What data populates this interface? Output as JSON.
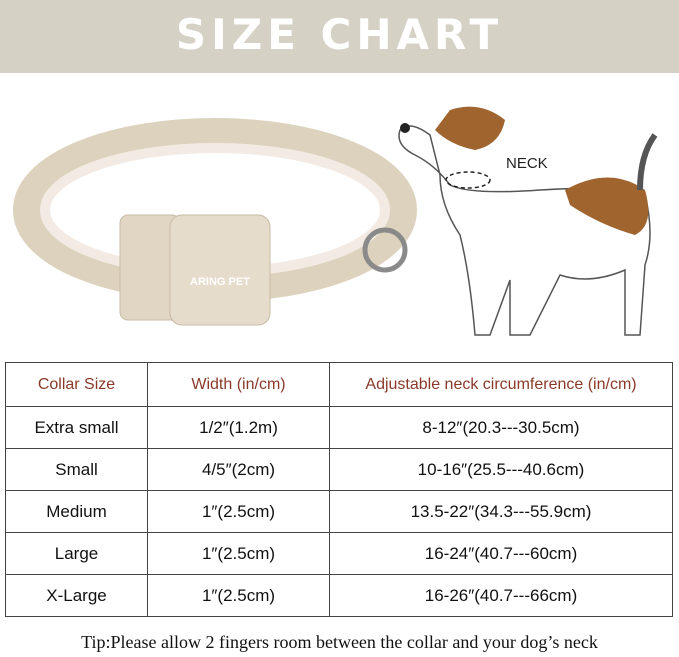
{
  "title": "SIZE CHART",
  "brand_logo": "ARING PET",
  "neck_label": "NECK",
  "colors": {
    "banner": "#d5d1c5",
    "header_text": "#8a3a28",
    "collar": "#e3d8c4",
    "dog_patch": "#a0642e"
  },
  "table": {
    "headers": [
      "Collar Size",
      "Width (in/cm)",
      "Adjustable neck circumference (in/cm)"
    ],
    "rows": [
      [
        "Extra small",
        "1/2″(1.2m)",
        "8-12″(20.3---30.5cm)"
      ],
      [
        "Small",
        "4/5″(2cm)",
        "10-16″(25.5---40.6cm)"
      ],
      [
        "Medium",
        "1″(2.5cm)",
        "13.5-22″(34.3---55.9cm)"
      ],
      [
        "Large",
        "1″(2.5cm)",
        "16-24″(40.7---60cm)"
      ],
      [
        "X-Large",
        "1″(2.5cm)",
        "16-26″(40.7---66cm)"
      ]
    ]
  },
  "tip": "Tip:Please allow 2 fingers room between the collar and your dog’s neck"
}
